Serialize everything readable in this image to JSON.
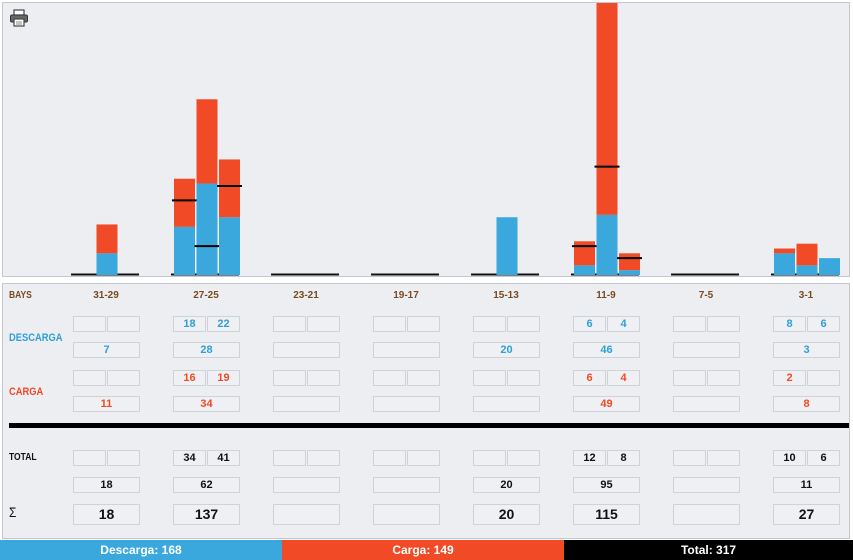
{
  "colors": {
    "descarga": "#3aa8dc",
    "carga": "#f04a26",
    "total": "#000000",
    "header": "#7a4a20"
  },
  "toolbar": {
    "print_icon": "printer-icon"
  },
  "labels": {
    "bays": "BAYS",
    "descarga": "DESCARGA",
    "carga": "CARGA",
    "total": "TOTAL",
    "sum": "Σ"
  },
  "bays": [
    {
      "name": "31-29",
      "descarga": {
        "pair": [
          "",
          ""
        ],
        "total": "7"
      },
      "carga": {
        "pair": [
          "",
          ""
        ],
        "total": "11"
      },
      "total": {
        "pair": [
          "",
          ""
        ],
        "sub": "18",
        "sum": "18"
      }
    },
    {
      "name": "27-25",
      "descarga": {
        "pair": [
          "18",
          "22"
        ],
        "total": "28"
      },
      "carga": {
        "pair": [
          "16",
          "19"
        ],
        "total": "34"
      },
      "total": {
        "pair": [
          "34",
          "41"
        ],
        "sub": "62",
        "sum": "137"
      }
    },
    {
      "name": "23-21",
      "descarga": {
        "pair": [
          "",
          ""
        ],
        "total": ""
      },
      "carga": {
        "pair": [
          "",
          ""
        ],
        "total": ""
      },
      "total": {
        "pair": [
          "",
          ""
        ],
        "sub": "",
        "sum": ""
      }
    },
    {
      "name": "19-17",
      "descarga": {
        "pair": [
          "",
          ""
        ],
        "total": ""
      },
      "carga": {
        "pair": [
          "",
          ""
        ],
        "total": ""
      },
      "total": {
        "pair": [
          "",
          ""
        ],
        "sub": "",
        "sum": ""
      }
    },
    {
      "name": "15-13",
      "descarga": {
        "pair": [
          "",
          ""
        ],
        "total": "20"
      },
      "carga": {
        "pair": [
          "",
          ""
        ],
        "total": ""
      },
      "total": {
        "pair": [
          "",
          ""
        ],
        "sub": "20",
        "sum": "20"
      }
    },
    {
      "name": "11-9",
      "descarga": {
        "pair": [
          "6",
          "4"
        ],
        "total": "46"
      },
      "carga": {
        "pair": [
          "6",
          "4"
        ],
        "total": "49"
      },
      "total": {
        "pair": [
          "12",
          "8"
        ],
        "sub": "95",
        "sum": "115"
      }
    },
    {
      "name": "7-5",
      "descarga": {
        "pair": [
          "",
          ""
        ],
        "total": ""
      },
      "carga": {
        "pair": [
          "",
          ""
        ],
        "total": ""
      },
      "total": {
        "pair": [
          "",
          ""
        ],
        "sub": "",
        "sum": ""
      }
    },
    {
      "name": "3-1",
      "descarga": {
        "pair": [
          "8",
          "6"
        ],
        "total": "3"
      },
      "carga": {
        "pair": [
          "2",
          ""
        ],
        "total": "8"
      },
      "total": {
        "pair": [
          "10",
          "6"
        ],
        "sub": "11",
        "sum": "27"
      }
    }
  ],
  "footer": {
    "descarga": "Descarga: 168",
    "carga": "Carga: 149",
    "total": "Total: 317"
  },
  "chart_data": {
    "type": "bar",
    "stacked": true,
    "ylim": [
      0,
      113
    ],
    "categories": [
      "31-29",
      "27-25",
      "23-21",
      "19-17",
      "15-13",
      "11-9",
      "7-5",
      "3-1"
    ],
    "groups": [
      {
        "bay": "31-29",
        "bars": [
          {
            "descarga": 0,
            "carga": 0
          },
          {
            "descarga": 9,
            "carga": 12
          },
          {
            "descarga": 0,
            "carga": 0
          }
        ]
      },
      {
        "bay": "27-25",
        "bars": [
          {
            "descarga": 20,
            "carga": 20,
            "line": 31
          },
          {
            "descarga": 38,
            "carga": 35,
            "line": 12
          },
          {
            "descarga": 24,
            "carga": 24,
            "line": 37
          }
        ]
      },
      {
        "bay": "23-21",
        "bars": [
          {
            "descarga": 0,
            "carga": 0
          },
          {
            "descarga": 0,
            "carga": 0
          },
          {
            "descarga": 0,
            "carga": 0
          }
        ]
      },
      {
        "bay": "19-17",
        "bars": [
          {
            "descarga": 0,
            "carga": 0
          },
          {
            "descarga": 0,
            "carga": 0
          },
          {
            "descarga": 0,
            "carga": 0
          }
        ]
      },
      {
        "bay": "15-13",
        "bars": [
          {
            "descarga": 0,
            "carga": 0
          },
          {
            "descarga": 24,
            "carga": 0
          },
          {
            "descarga": 0,
            "carga": 0
          }
        ]
      },
      {
        "bay": "11-9",
        "bars": [
          {
            "descarga": 4,
            "carga": 10,
            "line": 12
          },
          {
            "descarga": 25,
            "carga": 88,
            "line": 45
          },
          {
            "descarga": 2,
            "carga": 7,
            "line": 7
          }
        ]
      },
      {
        "bay": "7-5",
        "bars": [
          {
            "descarga": 0,
            "carga": 0
          },
          {
            "descarga": 0,
            "carga": 0
          },
          {
            "descarga": 0,
            "carga": 0
          }
        ]
      },
      {
        "bay": "3-1",
        "bars": [
          {
            "descarga": 9,
            "carga": 2
          },
          {
            "descarga": 4,
            "carga": 9
          },
          {
            "descarga": 7,
            "carga": 0
          }
        ]
      }
    ]
  }
}
